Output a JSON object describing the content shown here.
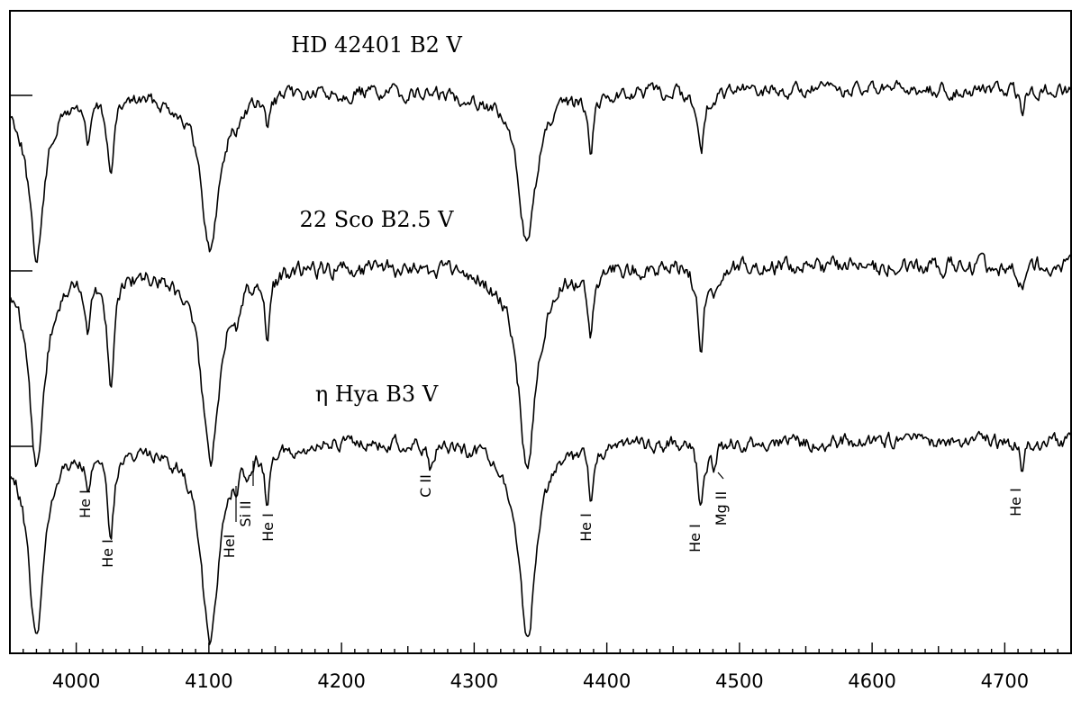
{
  "chart_data": {
    "type": "line",
    "title": "",
    "xlabel": "",
    "ylabel": "",
    "xlim": [
      3950,
      4750
    ],
    "xticks": [
      4000,
      4100,
      4200,
      4300,
      4400,
      4500,
      4600,
      4700
    ],
    "grid": false,
    "series": [
      {
        "name": "HD 42401  B2 V",
        "continuum": 1.0,
        "absorption_lines": [
          {
            "wavelength": 3970,
            "depth": 0.86,
            "width": 7
          },
          {
            "wavelength": 4009,
            "depth": 0.26,
            "width": 2
          },
          {
            "wavelength": 4026,
            "depth": 0.42,
            "width": 3
          },
          {
            "wavelength": 4101,
            "depth": 0.82,
            "width": 8
          },
          {
            "wavelength": 4121,
            "depth": 0.08,
            "width": 2
          },
          {
            "wavelength": 4144,
            "depth": 0.17,
            "width": 2
          },
          {
            "wavelength": 4340,
            "depth": 0.78,
            "width": 8
          },
          {
            "wavelength": 4388,
            "depth": 0.3,
            "width": 2
          },
          {
            "wavelength": 4471,
            "depth": 0.33,
            "width": 3
          },
          {
            "wavelength": 4481,
            "depth": 0.06,
            "width": 2
          },
          {
            "wavelength": 4713,
            "depth": 0.12,
            "width": 2
          }
        ]
      },
      {
        "name": "22 Sco  B2.5 V",
        "continuum": 1.0,
        "absorption_lines": [
          {
            "wavelength": 3970,
            "depth": 0.86,
            "width": 7
          },
          {
            "wavelength": 4009,
            "depth": 0.24,
            "width": 2
          },
          {
            "wavelength": 4026,
            "depth": 0.51,
            "width": 3
          },
          {
            "wavelength": 4101,
            "depth": 0.84,
            "width": 8
          },
          {
            "wavelength": 4121,
            "depth": 0.1,
            "width": 2
          },
          {
            "wavelength": 4144,
            "depth": 0.3,
            "width": 2
          },
          {
            "wavelength": 4340,
            "depth": 0.86,
            "width": 8
          },
          {
            "wavelength": 4388,
            "depth": 0.31,
            "width": 2
          },
          {
            "wavelength": 4471,
            "depth": 0.37,
            "width": 3
          },
          {
            "wavelength": 4481,
            "depth": 0.06,
            "width": 2
          },
          {
            "wavelength": 4713,
            "depth": 0.12,
            "width": 2
          }
        ]
      },
      {
        "name": "η Hya  B3 V",
        "continuum": 1.0,
        "absorption_lines": [
          {
            "wavelength": 3970,
            "depth": 1.0,
            "width": 7
          },
          {
            "wavelength": 4009,
            "depth": 0.23,
            "width": 2
          },
          {
            "wavelength": 4026,
            "depth": 0.45,
            "width": 3
          },
          {
            "wavelength": 4101,
            "depth": 1.0,
            "width": 8
          },
          {
            "wavelength": 4121,
            "depth": 0.1,
            "width": 2
          },
          {
            "wavelength": 4128,
            "depth": 0.08,
            "width": 2
          },
          {
            "wavelength": 4144,
            "depth": 0.31,
            "width": 2
          },
          {
            "wavelength": 4267,
            "depth": 0.14,
            "width": 2
          },
          {
            "wavelength": 4340,
            "depth": 0.96,
            "width": 8
          },
          {
            "wavelength": 4388,
            "depth": 0.29,
            "width": 2
          },
          {
            "wavelength": 4471,
            "depth": 0.33,
            "width": 3
          },
          {
            "wavelength": 4481,
            "depth": 0.13,
            "width": 2
          },
          {
            "wavelength": 4713,
            "depth": 0.15,
            "width": 2
          }
        ]
      }
    ],
    "annotations": [
      {
        "text": "He I",
        "wavelength": 4009,
        "series": 2
      },
      {
        "text": "He I",
        "wavelength": 4026,
        "series": 2
      },
      {
        "text": "HeI",
        "wavelength": 4121,
        "series": 2
      },
      {
        "text": "Si II",
        "wavelength": 4128,
        "series": 2
      },
      {
        "text": "He I",
        "wavelength": 4144,
        "series": 2
      },
      {
        "text": "C II",
        "wavelength": 4267,
        "series": 2
      },
      {
        "text": "He I",
        "wavelength": 4388,
        "series": 2
      },
      {
        "text": "He I",
        "wavelength": 4471,
        "series": 2
      },
      {
        "text": "Mg II",
        "wavelength": 4481,
        "series": 2
      },
      {
        "text": "He I",
        "wavelength": 4713,
        "series": 2
      }
    ]
  }
}
